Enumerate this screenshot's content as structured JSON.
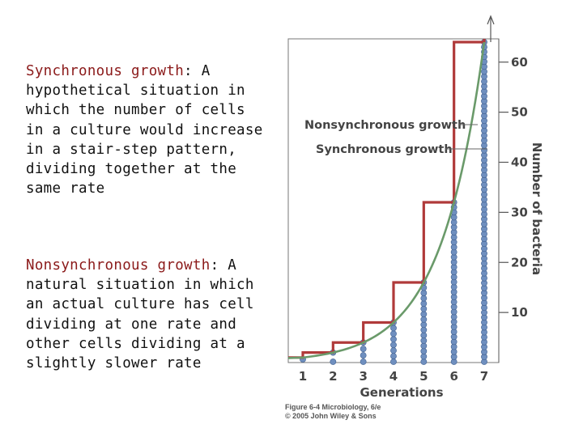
{
  "text": {
    "synchronous": {
      "term": "Synchronous growth",
      "colon": ":",
      "description": " A hypothetical situation in which the number of cells in a culture would increase in a stair-step pattern, dividing together at the same rate"
    },
    "nonsynchronous": {
      "term": "Nonsynchronous growth",
      "colon": ":",
      "description": " A natural situation in which an actual culture has cell dividing at one rate and other cells dividing at a slightly slower rate"
    }
  },
  "caption": {
    "line1": "Figure 6-4  Microbiology, 6/e",
    "line2": "© 2005 John Wiley & Sons"
  },
  "colors": {
    "term": "#8b1a1a",
    "synchronous_line": "#b03a3a",
    "nonsynchronous_curve": "#6a9a6a",
    "cells": "#6f8fbf",
    "axis": "#555555"
  },
  "chart_data": {
    "type": "line",
    "xlabel": "Generations",
    "ylabel": "Number of bacteria",
    "xlim": [
      1,
      7
    ],
    "ylim": [
      0,
      64
    ],
    "x_ticks": [
      1,
      2,
      3,
      4,
      5,
      6,
      7
    ],
    "y_ticks": [
      10,
      20,
      30,
      40,
      50,
      60
    ],
    "series": [
      {
        "name": "Nonsynchronous growth",
        "kind": "smooth-curve",
        "x": [
          1,
          2,
          3,
          4,
          5,
          6,
          7
        ],
        "y": [
          1,
          2,
          4,
          8,
          16,
          32,
          64
        ]
      },
      {
        "name": "Synchronous growth",
        "kind": "step",
        "x": [
          1,
          2,
          3,
          4,
          5,
          6,
          7
        ],
        "y": [
          1,
          2,
          4,
          8,
          16,
          32,
          64
        ]
      }
    ],
    "cell_columns": {
      "x": [
        1,
        2,
        3,
        4,
        5,
        6,
        7
      ],
      "counts": [
        1,
        2,
        4,
        8,
        16,
        32,
        64
      ]
    }
  }
}
